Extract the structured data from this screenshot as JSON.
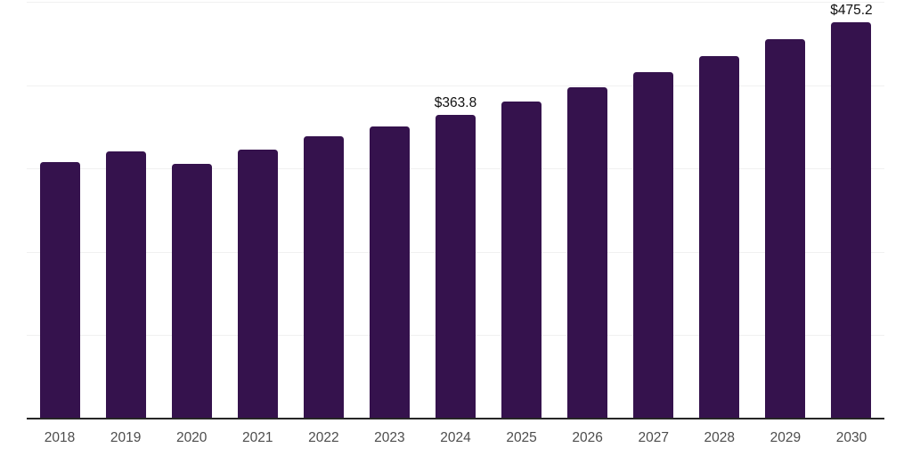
{
  "chart_data": {
    "type": "bar",
    "title": "",
    "xlabel": "",
    "ylabel": "",
    "categories": [
      "2018",
      "2019",
      "2020",
      "2021",
      "2022",
      "2023",
      "2024",
      "2025",
      "2026",
      "2027",
      "2028",
      "2029",
      "2030"
    ],
    "values": [
      307.6,
      320.6,
      305.8,
      322.4,
      339.0,
      350.0,
      363.8,
      380.2,
      397.5,
      415.6,
      434.9,
      455.1,
      475.2
    ],
    "data_labels": {
      "2024": "$363.8",
      "2030": "$475.2"
    },
    "ylim": [
      0,
      500
    ],
    "grid": "horizontal",
    "gridline_values": [
      100,
      200,
      300,
      400,
      500
    ],
    "legend": "none",
    "bar_color": "#35124d",
    "axis_line_color": "#262626",
    "gridline_color": "#f0f0f0",
    "tick_label_color": "#4d4d4d",
    "data_label_color": "#111111",
    "background_color": "#ffffff"
  }
}
